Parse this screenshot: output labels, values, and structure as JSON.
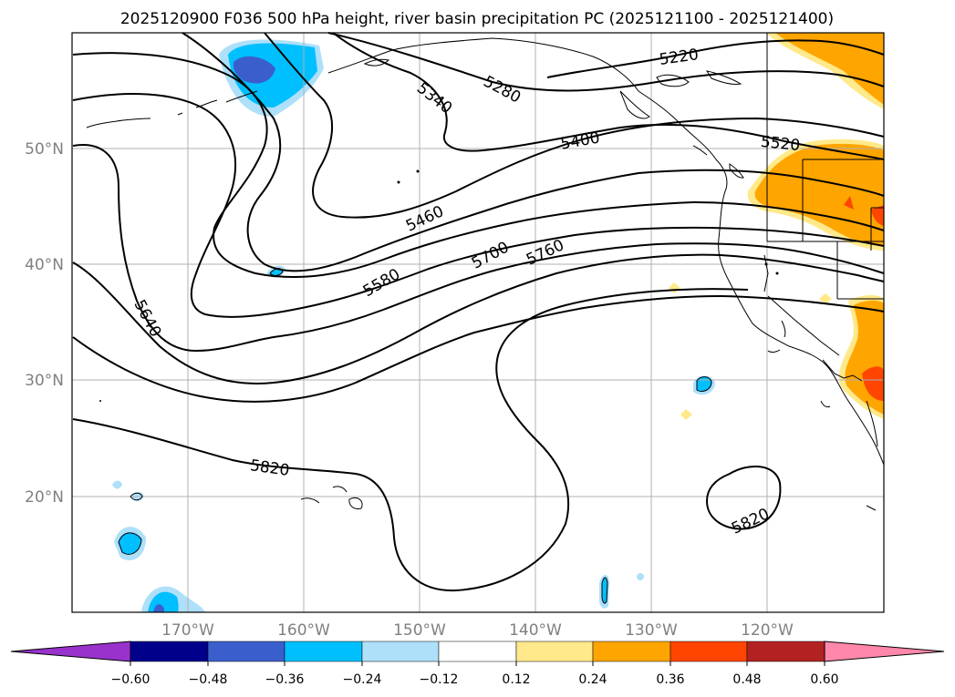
{
  "title": "2025120900 F036 500 hPa height, river basin precipitation PC (2025121100 - 2025121400)",
  "map": {
    "lat_labels": [
      "50°N",
      "40°N",
      "30°N",
      "20°N"
    ],
    "lon_labels": [
      "170°W",
      "160°W",
      "150°W",
      "140°W",
      "130°W",
      "120°W"
    ],
    "contour_labels": [
      "5220",
      "5280",
      "5340",
      "5400",
      "5460",
      "5520",
      "5580",
      "5640",
      "5700",
      "5760",
      "5820",
      "5820"
    ]
  },
  "colorbar": {
    "tick_labels": [
      "−0.60",
      "−0.48",
      "−0.36",
      "−0.24",
      "−0.12",
      "0.12",
      "0.24",
      "0.36",
      "0.48",
      "0.60"
    ],
    "colors": [
      "#9932cc",
      "#00008b",
      "#3a5fcd",
      "#00bfff",
      "#afe0fa",
      "#ffffff",
      "#ffe98a",
      "#ffa500",
      "#ff4500",
      "#b22222",
      "#ff88aa"
    ]
  }
}
